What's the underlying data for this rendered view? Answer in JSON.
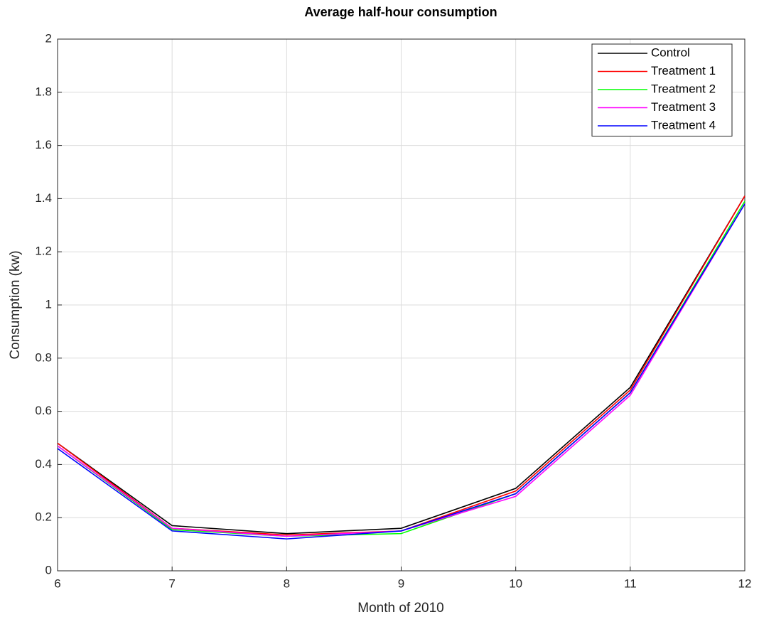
{
  "chart_data": {
    "type": "line",
    "title": "Average half-hour consumption",
    "x_label": "Month of 2010",
    "y_label": "Consumption (kw)",
    "x": [
      6,
      7,
      8,
      9,
      10,
      11,
      12
    ],
    "series": [
      {
        "name": "Control",
        "color": "#000000",
        "values": [
          0.48,
          0.17,
          0.14,
          0.16,
          0.31,
          0.69,
          1.41
        ]
      },
      {
        "name": "Treatment 1",
        "color": "#ff0000",
        "values": [
          0.48,
          0.16,
          0.135,
          0.15,
          0.3,
          0.68,
          1.41
        ]
      },
      {
        "name": "Treatment 2",
        "color": "#00ff00",
        "values": [
          0.47,
          0.155,
          0.13,
          0.14,
          0.29,
          0.67,
          1.39
        ]
      },
      {
        "name": "Treatment 3",
        "color": "#ff00ff",
        "values": [
          0.47,
          0.16,
          0.13,
          0.15,
          0.28,
          0.66,
          1.38
        ]
      },
      {
        "name": "Treatment 4",
        "color": "#0000ff",
        "values": [
          0.46,
          0.15,
          0.12,
          0.15,
          0.29,
          0.67,
          1.38
        ]
      }
    ],
    "xlim": [
      6,
      12
    ],
    "xticks": [
      6,
      7,
      8,
      9,
      10,
      11,
      12
    ],
    "ylim": [
      0,
      2
    ],
    "yticks": [
      0,
      0.2,
      0.4,
      0.6,
      0.8,
      1,
      1.2,
      1.4,
      1.6,
      1.8,
      2
    ],
    "grid": true,
    "legend": "northeast"
  }
}
